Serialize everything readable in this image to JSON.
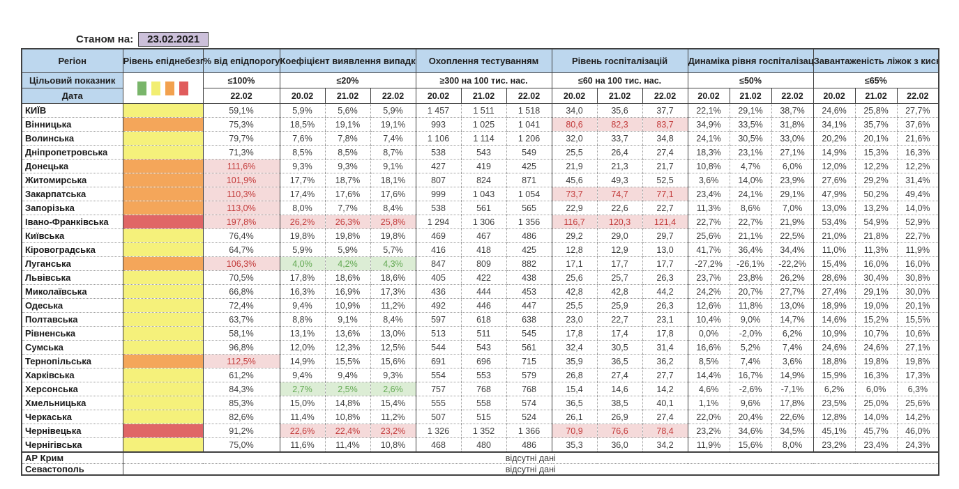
{
  "meta": {
    "as_of_label": "Станом на:",
    "as_of_date": "23.02.2021"
  },
  "colors": {
    "header_bg": "#BDD7EE",
    "date_box_bg": "#CCC0DA",
    "level_yellow": "#F5F17B",
    "level_orange": "#F4A65A",
    "level_red": "#E06666",
    "bad_text": "#C23A3A",
    "bad_bg": "#F5DADA",
    "good_text": "#63A953",
    "good_bg": "#DCEDD5",
    "legend": [
      "#79B56A",
      "#F2EE72",
      "#F2A14E",
      "#E05C5C"
    ]
  },
  "table": {
    "layout": {
      "region_w": 145,
      "level_w": 115,
      "group_col_w": [
        110,
        65,
        65,
        65,
        60,
        60
      ]
    },
    "header": {
      "region_label": "Регіон",
      "level_label": "Рівень епіднебезпеки",
      "target_row_label": "Цільовий показник",
      "date_row_label": "Дата",
      "groups": [
        {
          "label": "% від епідпорогу",
          "target": "≤100%",
          "dates": [
            "22.02"
          ]
        },
        {
          "label": "Коефіцієнт виявлення випадків інфікування",
          "target": "≤20%",
          "dates": [
            "20.02",
            "21.02",
            "22.02"
          ]
        },
        {
          "label": "Охоплення тестуванням",
          "target": "≥300 на 100 тис. нас.",
          "dates": [
            "20.02",
            "21.02",
            "22.02"
          ]
        },
        {
          "label": "Рівень госпіталізацій",
          "target": "≤60 на 100 тис. нас.",
          "dates": [
            "20.02",
            "21.02",
            "22.02"
          ]
        },
        {
          "label": "Динаміка рівня госпіталізацій",
          "target": "≤50%",
          "dates": [
            "20.02",
            "21.02",
            "22.02"
          ]
        },
        {
          "label": "Завантаженість ліжок з киснем",
          "target": "≤65%",
          "dates": [
            "20.02",
            "21.02",
            "22.02"
          ]
        }
      ]
    },
    "legend_names": [
      "green",
      "yellow",
      "orange",
      "red"
    ],
    "no_data_text": "відсутні дані",
    "rows": [
      {
        "region": "КИЇВ",
        "level": "yellow",
        "cells": [
          [
            "59,1%"
          ],
          [
            "5,9%",
            "5,6%",
            "5,9%"
          ],
          [
            "1 457",
            "1 511",
            "1 518"
          ],
          [
            "34,0",
            "35,6",
            "37,7"
          ],
          [
            "22,1%",
            "29,1%",
            "38,7%"
          ],
          [
            "24,6%",
            "25,8%",
            "27,7%"
          ]
        ]
      },
      {
        "region": "Вінницька",
        "level": "orange",
        "cells": [
          [
            "75,3%"
          ],
          [
            "18,5%",
            "19,1%",
            "19,1%"
          ],
          [
            "993",
            "1 025",
            "1 041"
          ],
          [
            [
              "80,6",
              "bad"
            ],
            [
              "82,3",
              "bad"
            ],
            [
              "83,7",
              "bad"
            ]
          ],
          [
            "34,9%",
            "33,5%",
            "31,8%"
          ],
          [
            "34,1%",
            "35,7%",
            "37,6%"
          ]
        ]
      },
      {
        "region": "Волинська",
        "level": "yellow",
        "cells": [
          [
            "79,7%"
          ],
          [
            "7,6%",
            "7,8%",
            "7,4%"
          ],
          [
            "1 106",
            "1 114",
            "1 206"
          ],
          [
            "32,0",
            "33,7",
            "34,8"
          ],
          [
            "24,1%",
            "30,5%",
            "33,0%"
          ],
          [
            "20,2%",
            "20,1%",
            "21,6%"
          ]
        ]
      },
      {
        "region": "Дніпропетровська",
        "level": "yellow",
        "cells": [
          [
            "71,3%"
          ],
          [
            "8,5%",
            "8,5%",
            "8,7%"
          ],
          [
            "538",
            "543",
            "549"
          ],
          [
            "25,5",
            "26,4",
            "27,4"
          ],
          [
            "18,3%",
            "23,1%",
            "27,1%"
          ],
          [
            "14,9%",
            "15,3%",
            "16,3%"
          ]
        ]
      },
      {
        "region": "Донецька",
        "level": "orange",
        "cells": [
          [
            [
              "111,6%",
              "bad"
            ]
          ],
          [
            "9,3%",
            "9,3%",
            "9,1%"
          ],
          [
            "427",
            "419",
            "425"
          ],
          [
            "21,9",
            "21,3",
            "21,7"
          ],
          [
            "10,8%",
            "4,7%",
            "6,0%"
          ],
          [
            "12,0%",
            "12,2%",
            "12,2%"
          ]
        ]
      },
      {
        "region": "Житомирська",
        "level": "orange",
        "cells": [
          [
            [
              "101,9%",
              "bad"
            ]
          ],
          [
            "17,7%",
            "18,7%",
            "18,1%"
          ],
          [
            "807",
            "824",
            "871"
          ],
          [
            "45,6",
            "49,3",
            "52,5"
          ],
          [
            "3,6%",
            "14,0%",
            "23,9%"
          ],
          [
            "27,6%",
            "29,2%",
            "31,4%"
          ]
        ]
      },
      {
        "region": "Закарпатська",
        "level": "orange",
        "cells": [
          [
            [
              "110,3%",
              "bad"
            ]
          ],
          [
            "17,4%",
            "17,6%",
            "17,6%"
          ],
          [
            "999",
            "1 043",
            "1 054"
          ],
          [
            [
              "73,7",
              "bad"
            ],
            [
              "74,7",
              "bad"
            ],
            [
              "77,1",
              "bad"
            ]
          ],
          [
            "23,4%",
            "24,1%",
            "29,1%"
          ],
          [
            "47,9%",
            "50,2%",
            "49,4%"
          ]
        ]
      },
      {
        "region": "Запорізька",
        "level": "orange",
        "cells": [
          [
            [
              "113,0%",
              "bad"
            ]
          ],
          [
            "8,0%",
            "7,7%",
            "8,4%"
          ],
          [
            "538",
            "561",
            "565"
          ],
          [
            "22,9",
            "22,6",
            "22,7"
          ],
          [
            "11,3%",
            "8,6%",
            "7,0%"
          ],
          [
            "13,0%",
            "13,2%",
            "14,0%"
          ]
        ]
      },
      {
        "region": "Івано-Франківська",
        "level": "red",
        "cells": [
          [
            [
              "197,8%",
              "bad"
            ]
          ],
          [
            [
              "26,2%",
              "bad"
            ],
            [
              "26,3%",
              "bad"
            ],
            [
              "25,8%",
              "bad"
            ]
          ],
          [
            "1 294",
            "1 306",
            "1 356"
          ],
          [
            [
              "116,7",
              "bad"
            ],
            [
              "120,3",
              "bad"
            ],
            [
              "121,4",
              "bad"
            ]
          ],
          [
            "22,7%",
            "22,7%",
            "21,9%"
          ],
          [
            "53,4%",
            "54,9%",
            "52,9%"
          ]
        ]
      },
      {
        "region": "Київська",
        "level": "yellow",
        "cells": [
          [
            "76,4%"
          ],
          [
            "19,8%",
            "19,8%",
            "19,8%"
          ],
          [
            "469",
            "467",
            "486"
          ],
          [
            "29,2",
            "29,0",
            "29,7"
          ],
          [
            "25,6%",
            "21,1%",
            "22,5%"
          ],
          [
            "21,0%",
            "21,8%",
            "22,7%"
          ]
        ]
      },
      {
        "region": "Кіровоградська",
        "level": "yellow",
        "cells": [
          [
            "64,7%"
          ],
          [
            "5,9%",
            "5,9%",
            "5,7%"
          ],
          [
            "416",
            "418",
            "425"
          ],
          [
            "12,8",
            "12,9",
            "13,0"
          ],
          [
            "41,7%",
            "36,4%",
            "34,4%"
          ],
          [
            "11,0%",
            "11,3%",
            "11,9%"
          ]
        ]
      },
      {
        "region": "Луганська",
        "level": "orange",
        "cells": [
          [
            [
              "106,3%",
              "bad"
            ]
          ],
          [
            [
              "4,0%",
              "good"
            ],
            [
              "4,2%",
              "good"
            ],
            [
              "4,3%",
              "good"
            ]
          ],
          [
            "847",
            "809",
            "882"
          ],
          [
            "17,1",
            "17,7",
            "17,7"
          ],
          [
            "-27,2%",
            "-26,1%",
            "-22,2%"
          ],
          [
            "15,4%",
            "16,0%",
            "16,0%"
          ]
        ]
      },
      {
        "region": "Львівська",
        "level": "yellow",
        "cells": [
          [
            "70,5%"
          ],
          [
            "17,8%",
            "18,6%",
            "18,6%"
          ],
          [
            "405",
            "422",
            "438"
          ],
          [
            "25,6",
            "25,7",
            "26,3"
          ],
          [
            "23,7%",
            "23,8%",
            "26,2%"
          ],
          [
            "28,6%",
            "30,4%",
            "30,8%"
          ]
        ]
      },
      {
        "region": "Миколаївська",
        "level": "yellow",
        "cells": [
          [
            "66,8%"
          ],
          [
            "16,3%",
            "16,9%",
            "17,3%"
          ],
          [
            "436",
            "444",
            "453"
          ],
          [
            "42,8",
            "42,8",
            "44,2"
          ],
          [
            "24,2%",
            "20,7%",
            "27,7%"
          ],
          [
            "27,4%",
            "29,1%",
            "30,0%"
          ]
        ]
      },
      {
        "region": "Одеська",
        "level": "yellow",
        "cells": [
          [
            "72,4%"
          ],
          [
            "9,4%",
            "10,9%",
            "11,2%"
          ],
          [
            "492",
            "446",
            "447"
          ],
          [
            "25,5",
            "25,9",
            "26,3"
          ],
          [
            "12,6%",
            "11,8%",
            "13,0%"
          ],
          [
            "18,9%",
            "19,0%",
            "20,1%"
          ]
        ]
      },
      {
        "region": "Полтавська",
        "level": "yellow",
        "cells": [
          [
            "63,7%"
          ],
          [
            "8,8%",
            "9,1%",
            "8,4%"
          ],
          [
            "597",
            "618",
            "638"
          ],
          [
            "23,0",
            "22,7",
            "23,1"
          ],
          [
            "10,4%",
            "9,0%",
            "14,7%"
          ],
          [
            "14,6%",
            "15,2%",
            "15,5%"
          ]
        ]
      },
      {
        "region": "Рівненська",
        "level": "yellow",
        "cells": [
          [
            "58,1%"
          ],
          [
            "13,1%",
            "13,6%",
            "13,0%"
          ],
          [
            "513",
            "511",
            "545"
          ],
          [
            "17,8",
            "17,4",
            "17,8"
          ],
          [
            "0,0%",
            "-2,0%",
            "6,2%"
          ],
          [
            "10,9%",
            "10,7%",
            "10,6%"
          ]
        ]
      },
      {
        "region": "Сумська",
        "level": "yellow",
        "cells": [
          [
            "96,8%"
          ],
          [
            "12,0%",
            "12,3%",
            "12,5%"
          ],
          [
            "544",
            "543",
            "561"
          ],
          [
            "32,4",
            "30,5",
            "31,4"
          ],
          [
            "16,6%",
            "5,2%",
            "7,4%"
          ],
          [
            "24,6%",
            "24,6%",
            "27,1%"
          ]
        ]
      },
      {
        "region": "Тернопільська",
        "level": "orange",
        "cells": [
          [
            [
              "112,5%",
              "bad"
            ]
          ],
          [
            "14,9%",
            "15,5%",
            "15,6%"
          ],
          [
            "691",
            "696",
            "715"
          ],
          [
            "35,9",
            "36,5",
            "36,2"
          ],
          [
            "8,5%",
            "7,4%",
            "3,6%"
          ],
          [
            "18,8%",
            "19,8%",
            "19,8%"
          ]
        ]
      },
      {
        "region": "Харківська",
        "level": "yellow",
        "cells": [
          [
            "61,2%"
          ],
          [
            "9,4%",
            "9,4%",
            "9,3%"
          ],
          [
            "554",
            "553",
            "579"
          ],
          [
            "26,8",
            "27,4",
            "27,7"
          ],
          [
            "14,4%",
            "16,7%",
            "14,9%"
          ],
          [
            "15,9%",
            "16,3%",
            "17,3%"
          ]
        ]
      },
      {
        "region": "Херсонська",
        "level": "yellow",
        "cells": [
          [
            "84,3%"
          ],
          [
            [
              "2,7%",
              "good"
            ],
            [
              "2,5%",
              "good"
            ],
            [
              "2,6%",
              "good"
            ]
          ],
          [
            "757",
            "768",
            "768"
          ],
          [
            "15,4",
            "14,6",
            "14,2"
          ],
          [
            "4,6%",
            "-2,6%",
            "-7,1%"
          ],
          [
            "6,2%",
            "6,0%",
            "6,3%"
          ]
        ]
      },
      {
        "region": "Хмельницька",
        "level": "yellow",
        "cells": [
          [
            "85,3%"
          ],
          [
            "15,0%",
            "14,8%",
            "15,4%"
          ],
          [
            "555",
            "558",
            "574"
          ],
          [
            "36,5",
            "38,5",
            "40,1"
          ],
          [
            "1,1%",
            "9,6%",
            "17,8%"
          ],
          [
            "23,5%",
            "25,0%",
            "25,6%"
          ]
        ]
      },
      {
        "region": "Черкаська",
        "level": "yellow",
        "cells": [
          [
            "82,6%"
          ],
          [
            "11,4%",
            "10,8%",
            "11,2%"
          ],
          [
            "507",
            "515",
            "524"
          ],
          [
            "26,1",
            "26,9",
            "27,4"
          ],
          [
            "22,0%",
            "20,4%",
            "22,6%"
          ],
          [
            "12,8%",
            "14,0%",
            "14,2%"
          ]
        ]
      },
      {
        "region": "Чернівецька",
        "level": "red",
        "cells": [
          [
            "91,2%"
          ],
          [
            [
              "22,6%",
              "bad"
            ],
            [
              "22,4%",
              "bad"
            ],
            [
              "23,2%",
              "bad"
            ]
          ],
          [
            "1 326",
            "1 352",
            "1 366"
          ],
          [
            [
              "70,9",
              "bad"
            ],
            [
              "76,6",
              "bad"
            ],
            [
              "78,4",
              "bad"
            ]
          ],
          [
            "23,2%",
            "34,6%",
            "34,5%"
          ],
          [
            "45,1%",
            "45,7%",
            "46,0%"
          ]
        ]
      },
      {
        "region": "Чернігівська",
        "level": "yellow",
        "cells": [
          [
            "75,0%"
          ],
          [
            "11,6%",
            "11,4%",
            "10,8%"
          ],
          [
            "468",
            "480",
            "486"
          ],
          [
            "35,3",
            "36,0",
            "34,2"
          ],
          [
            "11,9%",
            "15,6%",
            "8,0%"
          ],
          [
            "23,2%",
            "23,4%",
            "24,3%"
          ]
        ]
      },
      {
        "region": "АР Крим",
        "no_data": true
      },
      {
        "region": "Севастополь",
        "no_data": true
      }
    ]
  }
}
